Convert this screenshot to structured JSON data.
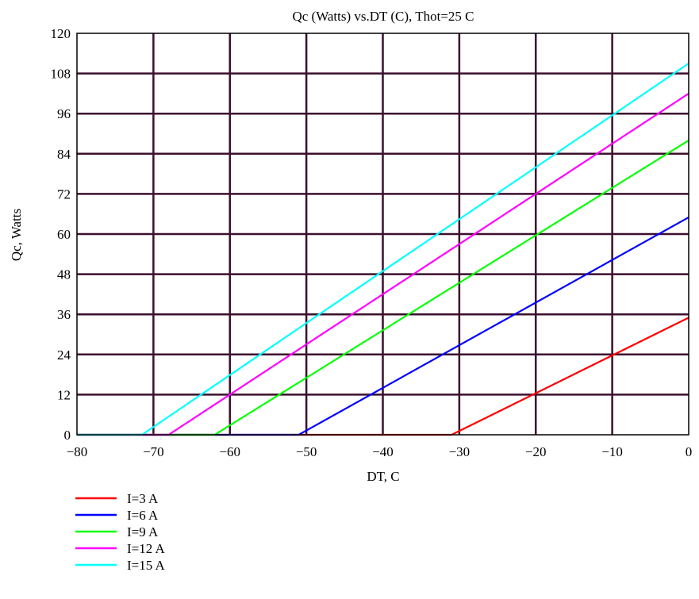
{
  "chart_data": {
    "type": "line",
    "title": "Qc (Watts) vs.DT (C), Thot=25 C",
    "xlabel": "DT, C",
    "ylabel": "Qc, Watts",
    "xlim": [
      -80,
      0
    ],
    "ylim": [
      0,
      120
    ],
    "xticks": [
      -80,
      -70,
      -60,
      -50,
      -40,
      -30,
      -20,
      -10,
      0
    ],
    "xtick_labels": [
      "−80",
      "−70",
      "−60",
      "−50",
      "−40",
      "−30",
      "−20",
      "−10",
      "0"
    ],
    "yticks": [
      0,
      12,
      24,
      36,
      48,
      60,
      72,
      84,
      96,
      108,
      120
    ],
    "ytick_labels": [
      "0",
      "12",
      "24",
      "36",
      "48",
      "60",
      "72",
      "84",
      "96",
      "108",
      "120"
    ],
    "grid": true,
    "grid_color": "#3b0f2e",
    "legend_position": "bottom-left",
    "series": [
      {
        "name": "I=3 A",
        "color": "#ff0000",
        "x": [
          -80,
          -31,
          0
        ],
        "y": [
          0,
          0,
          35
        ]
      },
      {
        "name": "I=6 A",
        "color": "#0000ff",
        "x": [
          -80,
          -51,
          0
        ],
        "y": [
          0,
          0,
          65
        ]
      },
      {
        "name": "I=9 A",
        "color": "#00ff00",
        "x": [
          -80,
          -62,
          0
        ],
        "y": [
          0,
          0,
          88
        ]
      },
      {
        "name": "I=12 A",
        "color": "#ff00ff",
        "x": [
          -80,
          -68,
          0
        ],
        "y": [
          0,
          0,
          102
        ]
      },
      {
        "name": "I=15 A",
        "color": "#00ffff",
        "x": [
          -80,
          -71.5,
          0
        ],
        "y": [
          0,
          0,
          111
        ]
      }
    ]
  }
}
